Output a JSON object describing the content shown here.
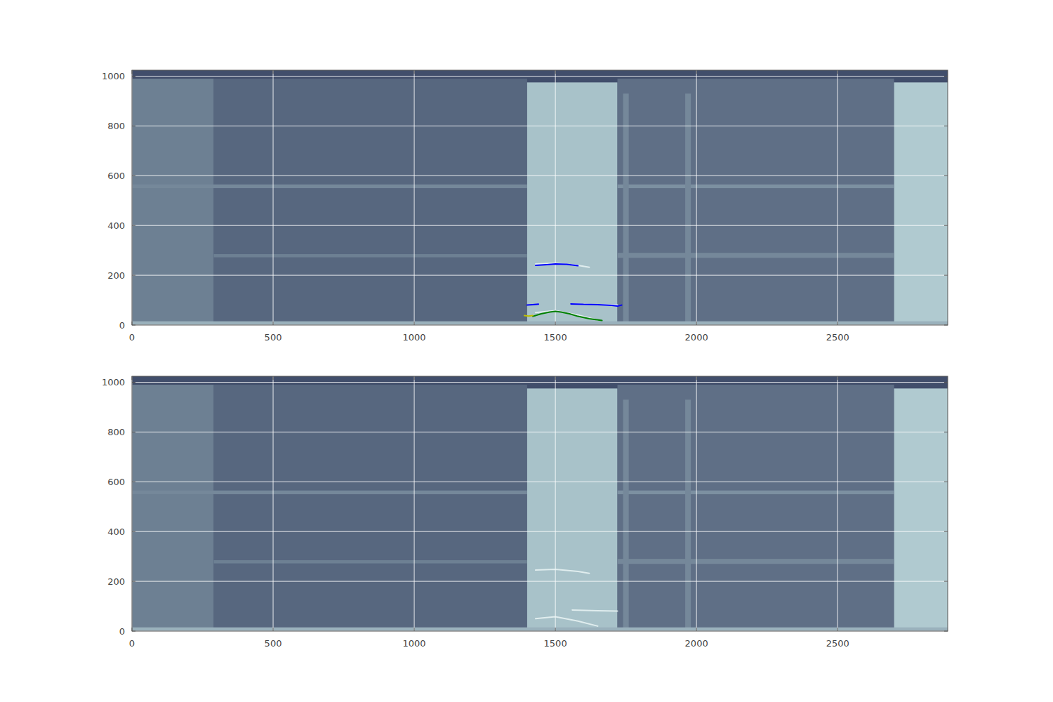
{
  "chart_data": [
    {
      "type": "heatmap",
      "xlim": [
        0,
        2890
      ],
      "ylim": [
        0,
        1024
      ],
      "xticks": [
        0,
        500,
        1000,
        1500,
        2000,
        2500
      ],
      "yticks": [
        0,
        200,
        400,
        600,
        800,
        1000
      ],
      "grid": true,
      "zlim": [
        0,
        1
      ],
      "cells": [
        {
          "x": [
            0,
            2890
          ],
          "y": [
            0,
            1024
          ],
          "level": 0.05
        },
        {
          "x": [
            0,
            290
          ],
          "y": [
            0,
            990
          ],
          "level": 0.35
        },
        {
          "x": [
            290,
            1400
          ],
          "y": [
            0,
            990
          ],
          "level": 0.2
        },
        {
          "x": [
            1400,
            1720
          ],
          "y": [
            0,
            975
          ],
          "level": 0.75
        },
        {
          "x": [
            1720,
            2700
          ],
          "y": [
            0,
            990
          ],
          "level": 0.25
        },
        {
          "x": [
            2700,
            2890
          ],
          "y": [
            0,
            975
          ],
          "level": 0.8
        },
        {
          "x": [
            0,
            1400
          ],
          "y": [
            550,
            565
          ],
          "level": 0.4
        },
        {
          "x": [
            1720,
            2700
          ],
          "y": [
            550,
            565
          ],
          "level": 0.45
        },
        {
          "x": [
            290,
            1400
          ],
          "y": [
            272,
            285
          ],
          "level": 0.35
        },
        {
          "x": [
            1720,
            2700
          ],
          "y": [
            270,
            290
          ],
          "level": 0.4
        },
        {
          "x": [
            1740,
            1760
          ],
          "y": [
            0,
            930
          ],
          "level": 0.4
        },
        {
          "x": [
            1960,
            1980
          ],
          "y": [
            0,
            930
          ],
          "level": 0.4
        },
        {
          "x": [
            0,
            2890
          ],
          "y": [
            0,
            15
          ],
          "level": 0.65
        }
      ],
      "series": [
        {
          "type": "line",
          "color": "#eef8f8",
          "x": [
            1430,
            1500,
            1580,
            1620
          ],
          "values": [
            245,
            248,
            240,
            232
          ]
        },
        {
          "type": "line",
          "color": "#eef8f8",
          "x": [
            1560,
            1650,
            1720
          ],
          "values": [
            85,
            82,
            80
          ]
        },
        {
          "type": "line",
          "color": "#eef8f8",
          "x": [
            1430,
            1500,
            1580,
            1650
          ],
          "values": [
            50,
            58,
            40,
            20
          ]
        },
        {
          "type": "line",
          "color": "#0000ff",
          "x": [
            1430,
            1470,
            1500,
            1540,
            1580
          ],
          "values": [
            240,
            243,
            245,
            244,
            238
          ]
        },
        {
          "type": "line",
          "color": "#0000ff",
          "x": [
            1400,
            1420,
            1440
          ],
          "values": [
            80,
            82,
            84
          ]
        },
        {
          "type": "line",
          "color": "#0000ff",
          "x": [
            1555,
            1600,
            1650,
            1700,
            1720,
            1735
          ],
          "values": [
            85,
            83,
            82,
            79,
            76,
            80
          ]
        },
        {
          "type": "line",
          "color": "#008000",
          "x": [
            1420,
            1450,
            1480,
            1500,
            1520,
            1550,
            1580,
            1620,
            1665
          ],
          "values": [
            35,
            45,
            52,
            55,
            52,
            45,
            35,
            25,
            18
          ]
        },
        {
          "type": "line",
          "color": "#bfbf00",
          "x": [
            1390,
            1405,
            1420
          ],
          "values": [
            38,
            36,
            38
          ]
        }
      ]
    },
    {
      "type": "heatmap",
      "xlim": [
        0,
        2890
      ],
      "ylim": [
        0,
        1024
      ],
      "xticks": [
        0,
        500,
        1000,
        1500,
        2000,
        2500
      ],
      "yticks": [
        0,
        200,
        400,
        600,
        800,
        1000
      ],
      "grid": true,
      "zlim": [
        0,
        1
      ],
      "cells": [
        {
          "x": [
            0,
            2890
          ],
          "y": [
            0,
            1024
          ],
          "level": 0.05
        },
        {
          "x": [
            0,
            290
          ],
          "y": [
            0,
            990
          ],
          "level": 0.35
        },
        {
          "x": [
            290,
            1400
          ],
          "y": [
            0,
            990
          ],
          "level": 0.2
        },
        {
          "x": [
            1400,
            1720
          ],
          "y": [
            0,
            975
          ],
          "level": 0.75
        },
        {
          "x": [
            1720,
            2700
          ],
          "y": [
            0,
            990
          ],
          "level": 0.25
        },
        {
          "x": [
            2700,
            2890
          ],
          "y": [
            0,
            975
          ],
          "level": 0.8
        },
        {
          "x": [
            0,
            1400
          ],
          "y": [
            550,
            565
          ],
          "level": 0.4
        },
        {
          "x": [
            1720,
            2700
          ],
          "y": [
            550,
            565
          ],
          "level": 0.45
        },
        {
          "x": [
            290,
            1400
          ],
          "y": [
            272,
            285
          ],
          "level": 0.35
        },
        {
          "x": [
            1720,
            2700
          ],
          "y": [
            270,
            290
          ],
          "level": 0.4
        },
        {
          "x": [
            1740,
            1760
          ],
          "y": [
            0,
            930
          ],
          "level": 0.4
        },
        {
          "x": [
            1960,
            1980
          ],
          "y": [
            0,
            930
          ],
          "level": 0.4
        },
        {
          "x": [
            0,
            2890
          ],
          "y": [
            0,
            15
          ],
          "level": 0.65
        }
      ],
      "series": [
        {
          "type": "line",
          "color": "#eef8f8",
          "x": [
            1430,
            1500,
            1580,
            1620
          ],
          "values": [
            245,
            248,
            240,
            232
          ]
        },
        {
          "type": "line",
          "color": "#eef8f8",
          "x": [
            1560,
            1650,
            1720
          ],
          "values": [
            85,
            82,
            80
          ]
        },
        {
          "type": "line",
          "color": "#eef8f8",
          "x": [
            1430,
            1500,
            1580,
            1650
          ],
          "values": [
            50,
            58,
            40,
            20
          ]
        }
      ]
    }
  ]
}
